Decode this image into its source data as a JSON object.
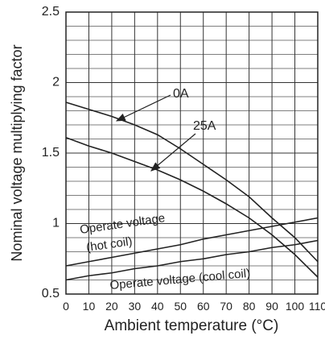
{
  "chart_data": {
    "type": "line",
    "xlabel": "Ambient temperature (°C)",
    "ylabel": "Nominal voltage multiplying factor",
    "x": [
      0,
      10,
      20,
      30,
      40,
      50,
      60,
      70,
      80,
      90,
      100,
      110
    ],
    "series": [
      {
        "name": "0A",
        "color": "#222222",
        "values": [
          1.86,
          1.81,
          1.76,
          1.7,
          1.63,
          1.53,
          1.42,
          1.31,
          1.19,
          1.04,
          0.9,
          0.73
        ]
      },
      {
        "name": "25A",
        "color": "#222222",
        "values": [
          1.61,
          1.55,
          1.5,
          1.44,
          1.38,
          1.31,
          1.23,
          1.14,
          1.04,
          0.92,
          0.78,
          0.62
        ]
      },
      {
        "color": "#222222",
        "values": [
          0.7,
          0.73,
          0.76,
          0.79,
          0.82,
          0.85,
          0.89,
          0.92,
          0.95,
          0.98,
          1.01,
          1.04
        ]
      },
      {
        "name": "Operate voltage (cool coil)",
        "color": "#222222",
        "values": [
          0.6,
          0.63,
          0.65,
          0.68,
          0.7,
          0.73,
          0.75,
          0.78,
          0.8,
          0.83,
          0.85,
          0.88
        ]
      }
    ],
    "annotations": [
      "Operate voltage",
      "(hot coil)"
    ],
    "xlim": [
      0,
      110
    ],
    "xticks": [
      0,
      10,
      20,
      30,
      40,
      50,
      60,
      70,
      80,
      90,
      100,
      110
    ],
    "ylim": [
      0.5,
      2.5
    ],
    "yticks": [
      0.5,
      1,
      1.5,
      2,
      2.5
    ],
    "yminor": [
      0.6,
      0.7,
      0.8,
      0.9,
      1.1,
      1.2,
      1.3,
      1.4,
      1.6,
      1.7,
      1.8,
      1.9,
      2.1,
      2.2,
      2.3,
      2.4
    ],
    "grid": true
  }
}
